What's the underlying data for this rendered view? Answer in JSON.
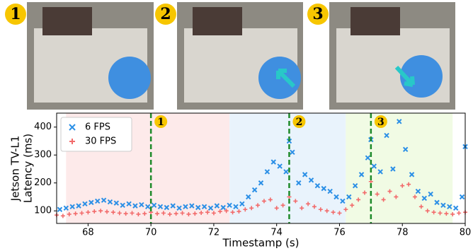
{
  "panels": [
    {
      "label": "1"
    },
    {
      "label": "2"
    },
    {
      "label": "3"
    }
  ],
  "chart_data": {
    "type": "scatter",
    "xlabel": "Timestamp (s)",
    "ylabel": [
      "Jetson TV-L1",
      "Latency (ms)"
    ],
    "xlim": [
      67,
      80
    ],
    "xticks": [
      68,
      70,
      72,
      74,
      76,
      78,
      80
    ],
    "ylim": [
      55,
      450
    ],
    "yticks": [
      100,
      200,
      300,
      400
    ],
    "legend": "upper left",
    "regions": [
      {
        "x": [
          67.3,
          72.5
        ],
        "color": "#fdeaea"
      },
      {
        "x": [
          72.5,
          76.2
        ],
        "color": "#e9f3fc"
      },
      {
        "x": [
          76.2,
          79.6
        ],
        "color": "#f1fbe4"
      }
    ],
    "markers": [
      {
        "x": 70,
        "label": "1"
      },
      {
        "x": 74.4,
        "label": "2"
      },
      {
        "x": 77,
        "label": "3"
      }
    ],
    "marker_color": "#1e8a2a",
    "series": [
      {
        "name": "6 FPS",
        "color": "#2b8fe6",
        "marker": "x",
        "x": [
          67.1,
          67.3,
          67.5,
          67.7,
          67.9,
          68.1,
          68.3,
          68.5,
          68.7,
          68.9,
          69.1,
          69.3,
          69.5,
          69.7,
          69.9,
          70.1,
          70.3,
          70.5,
          70.7,
          70.9,
          71.1,
          71.3,
          71.5,
          71.7,
          71.9,
          72.1,
          72.3,
          72.5,
          72.7,
          72.9,
          73.1,
          73.3,
          73.5,
          73.7,
          73.9,
          74.1,
          74.3,
          74.4,
          74.5,
          74.7,
          74.9,
          75.1,
          75.3,
          75.5,
          75.7,
          75.9,
          76.1,
          76.3,
          76.5,
          76.7,
          76.9,
          77.0,
          77.1,
          77.3,
          77.5,
          77.7,
          77.9,
          78.1,
          78.3,
          78.5,
          78.7,
          78.9,
          79.1,
          79.3,
          79.5,
          79.7,
          79.9,
          80.0
        ],
        "values": [
          105,
          110,
          115,
          118,
          125,
          130,
          135,
          138,
          132,
          128,
          120,
          125,
          118,
          122,
          115,
          120,
          115,
          112,
          118,
          110,
          115,
          118,
          112,
          115,
          110,
          118,
          112,
          120,
          115,
          125,
          150,
          175,
          200,
          240,
          275,
          260,
          240,
          350,
          310,
          200,
          230,
          210,
          190,
          180,
          170,
          150,
          135,
          150,
          190,
          230,
          290,
          355,
          260,
          240,
          370,
          250,
          420,
          320,
          230,
          170,
          145,
          160,
          130,
          120,
          115,
          110,
          150,
          330
        ]
      },
      {
        "name": "30 FPS",
        "color": "#f26b6b",
        "marker": "+",
        "x": [
          67.0,
          67.2,
          67.4,
          67.6,
          67.8,
          68.0,
          68.2,
          68.4,
          68.6,
          68.8,
          69.0,
          69.2,
          69.4,
          69.6,
          69.8,
          70.0,
          70.2,
          70.4,
          70.6,
          70.8,
          71.0,
          71.2,
          71.4,
          71.6,
          71.8,
          72.0,
          72.2,
          72.4,
          72.6,
          72.8,
          73.0,
          73.2,
          73.4,
          73.6,
          73.8,
          74.0,
          74.2,
          74.4,
          74.6,
          74.8,
          75.0,
          75.2,
          75.4,
          75.6,
          75.8,
          76.0,
          76.2,
          76.4,
          76.6,
          76.8,
          77.0,
          77.2,
          77.4,
          77.6,
          77.8,
          78.0,
          78.2,
          78.4,
          78.6,
          78.8,
          79.0,
          79.2,
          79.4,
          79.6,
          79.8,
          80.0
        ],
        "values": [
          85,
          82,
          88,
          90,
          92,
          95,
          98,
          100,
          97,
          95,
          92,
          90,
          92,
          88,
          90,
          95,
          90,
          92,
          88,
          90,
          92,
          88,
          90,
          93,
          95,
          92,
          98,
          100,
          95,
          98,
          105,
          110,
          120,
          135,
          140,
          110,
          120,
          150,
          135,
          110,
          125,
          115,
          105,
          100,
          95,
          92,
          105,
          120,
          140,
          165,
          205,
          160,
          140,
          170,
          150,
          190,
          195,
          150,
          115,
          100,
          95,
          92,
          90,
          88,
          92,
          95
        ]
      }
    ]
  }
}
